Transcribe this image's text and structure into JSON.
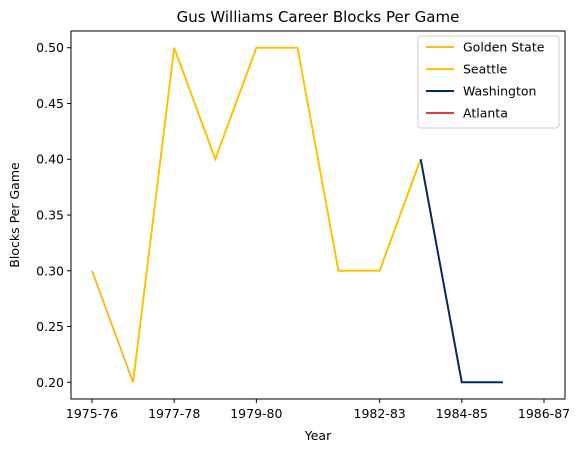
{
  "chart_data": {
    "type": "line",
    "title": "Gus Williams  Career Blocks Per Game",
    "xlabel": "Year",
    "ylabel": "Blocks Per Game",
    "x": [
      "1975-76",
      "1976-77",
      "1977-78",
      "1978-79",
      "1979-80",
      "1980-81",
      "1981-82",
      "1982-83",
      "1983-84",
      "1984-85",
      "1985-86",
      "1986-87"
    ],
    "x_tick_labels": [
      "1975-76",
      "1977-78",
      "1979-80",
      "1982-83",
      "1984-85",
      "1986-87"
    ],
    "y_ticks": [
      "0.20",
      "0.25",
      "0.30",
      "0.35",
      "0.40",
      "0.45",
      "0.50"
    ],
    "ylim": [
      0.185,
      0.515
    ],
    "series": [
      {
        "name": "Golden State",
        "color": "#FDB927",
        "points": [
          [
            "1975-76",
            0.3
          ],
          [
            "1976-77",
            0.2
          ]
        ]
      },
      {
        "name": "Seattle",
        "color": "#FFC200",
        "points": [
          [
            "1976-77",
            0.2
          ],
          [
            "1977-78",
            0.5
          ],
          [
            "1978-79",
            0.4
          ],
          [
            "1979-80",
            0.5
          ],
          [
            "1980-81",
            0.5
          ],
          [
            "1981-82",
            0.3
          ],
          [
            "1982-83",
            0.3
          ],
          [
            "1983-84",
            0.4
          ]
        ]
      },
      {
        "name": "Washington",
        "color": "#002B5C",
        "points": [
          [
            "1983-84",
            0.4
          ],
          [
            "1984-85",
            0.2
          ],
          [
            "1985-86",
            0.2
          ]
        ]
      },
      {
        "name": "Atlanta",
        "color": "#E03A3E",
        "points": [
          [
            "1985-86",
            0.2
          ]
        ]
      }
    ],
    "grid": false,
    "legend_position": "top-right"
  }
}
